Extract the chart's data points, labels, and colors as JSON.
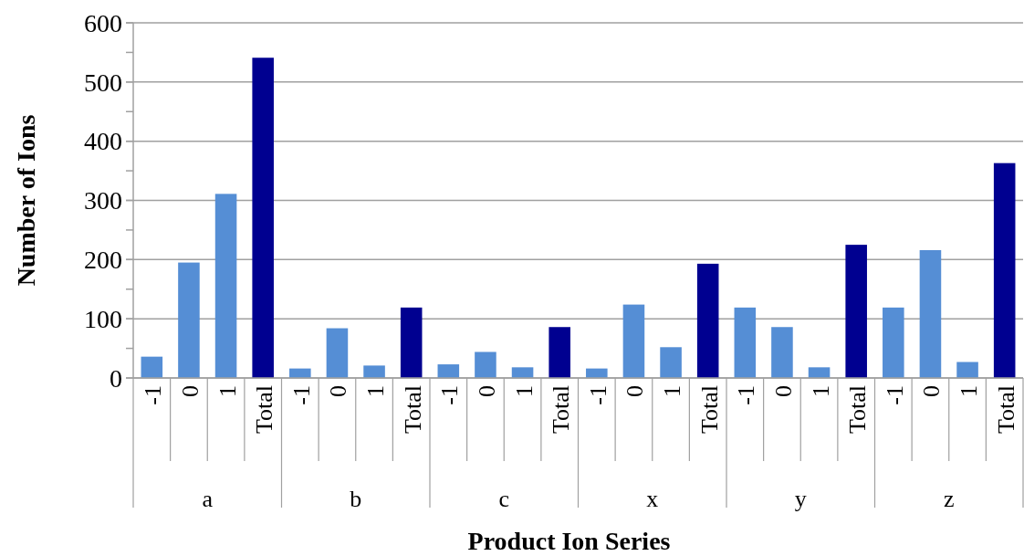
{
  "chart_data": {
    "type": "bar",
    "xlabel": "Product Ion Series",
    "ylabel": "Number of Ions",
    "categories": [
      "-1",
      "0",
      "1",
      "Total",
      "-1",
      "0",
      "1",
      "Total",
      "-1",
      "0",
      "1",
      "Total",
      "-1",
      "0",
      "1",
      "Total",
      "-1",
      "0",
      "1",
      "Total",
      "-1",
      "0",
      "1",
      "Total"
    ],
    "values": [
      36,
      195,
      311,
      541,
      16,
      84,
      21,
      119,
      23,
      44,
      18,
      86,
      16,
      124,
      52,
      193,
      119,
      86,
      18,
      225,
      119,
      216,
      27,
      363
    ],
    "colors": [
      "#558ed5",
      "#558ed5",
      "#558ed5",
      "#000090",
      "#558ed5",
      "#558ed5",
      "#558ed5",
      "#000090",
      "#558ed5",
      "#558ed5",
      "#558ed5",
      "#000090",
      "#558ed5",
      "#558ed5",
      "#558ed5",
      "#000090",
      "#558ed5",
      "#558ed5",
      "#558ed5",
      "#000090",
      "#558ed5",
      "#558ed5",
      "#558ed5",
      "#000090"
    ],
    "annotations": [
      "a",
      "b",
      "c",
      "x",
      "y",
      "z"
    ],
    "ylim": [
      0,
      600
    ],
    "yticks": [
      0,
      {
        "value": 50,
        "label": null
      },
      100,
      {
        "value": 150,
        "label": null
      },
      200,
      {
        "value": 250,
        "label": null
      },
      300,
      {
        "value": 350,
        "label": null
      },
      400,
      {
        "value": 450,
        "label": null
      },
      500,
      {
        "value": 550,
        "label": null
      },
      600
    ],
    "grid": "y"
  }
}
